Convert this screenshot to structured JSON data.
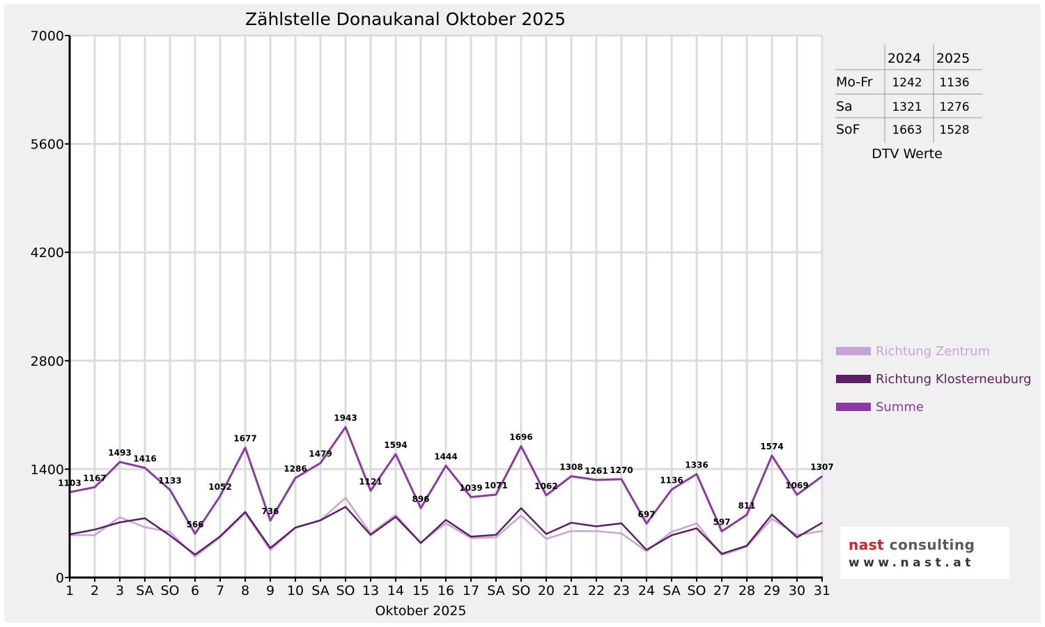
{
  "chart_data": {
    "type": "line",
    "title": "Zählstelle Donaukanal Oktober 2025",
    "xlabel": "Oktober 2025",
    "ylabel": "",
    "ylim": [
      0,
      7000
    ],
    "yticks": [
      0,
      1400,
      2800,
      4200,
      5600,
      7000
    ],
    "categories": [
      "1",
      "2",
      "3",
      "SA",
      "SO",
      "6",
      "7",
      "8",
      "9",
      "10",
      "SA",
      "SO",
      "13",
      "14",
      "15",
      "16",
      "17",
      "SA",
      "SO",
      "20",
      "21",
      "22",
      "23",
      "24",
      "SA",
      "SO",
      "27",
      "28",
      "29",
      "30",
      "31"
    ],
    "red_categories": [
      "SO"
    ],
    "grid": true,
    "legend_position": "right",
    "series": [
      {
        "name": "Richtung Zentrum",
        "color": "#c9a3d8",
        "values": [
          545,
          548,
          780,
          650,
          590,
          270,
          520,
          830,
          355,
          640,
          740,
          1030,
          570,
          810,
          450,
          700,
          510,
          520,
          800,
          500,
          600,
          600,
          570,
          340,
          590,
          700,
          290,
          400,
          760,
          550,
          600
        ]
      },
      {
        "name": "Richtung Klosterneuburg",
        "color": "#5c1f63",
        "values": [
          558,
          619,
          713,
          766,
          543,
          296,
          532,
          847,
          381,
          646,
          739,
          913,
          551,
          784,
          446,
          744,
          529,
          551,
          896,
          562,
          708,
          661,
          700,
          357,
          546,
          636,
          307,
          411,
          814,
          519,
          707
        ]
      },
      {
        "name": "Summe",
        "color": "#8c3aa3",
        "values": [
          1103,
          1167,
          1493,
          1416,
          1133,
          566,
          1052,
          1677,
          736,
          1286,
          1479,
          1943,
          1121,
          1594,
          896,
          1444,
          1039,
          1071,
          1696,
          1062,
          1308,
          1261,
          1270,
          697,
          1136,
          1336,
          597,
          811,
          1574,
          1069,
          1307
        ],
        "data_labels": true
      }
    ]
  },
  "dtv_table": {
    "caption": "DTV Werte",
    "col_headers": [
      "",
      "2024",
      "2025"
    ],
    "rows": [
      {
        "label": "Mo-Fr",
        "v2024": "1242",
        "v2025": "1136"
      },
      {
        "label": "Sa",
        "v2024": "1321",
        "v2025": "1276"
      },
      {
        "label": "SoF",
        "v2024": "1663",
        "v2025": "1528"
      }
    ]
  },
  "logo": {
    "line1_a": "nast",
    "line1_b": " consulting",
    "line2": "www.nast.at"
  }
}
